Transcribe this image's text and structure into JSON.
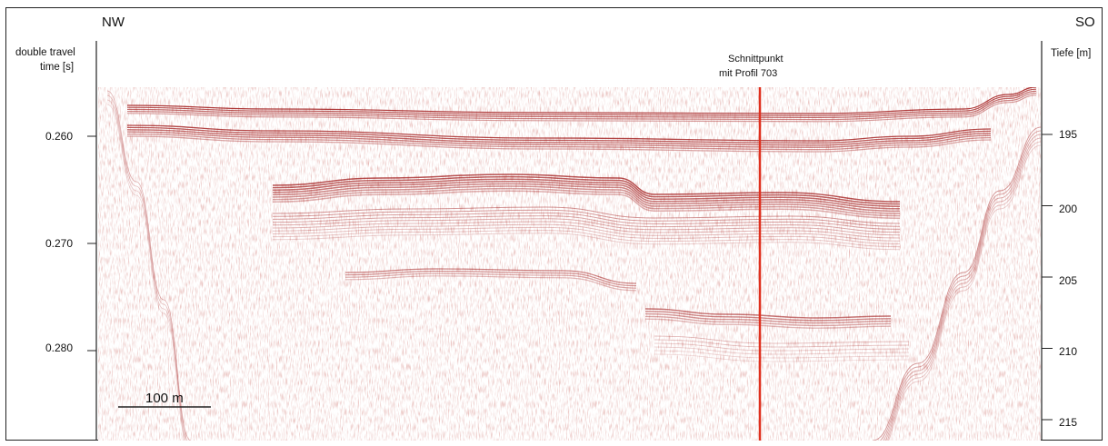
{
  "figure": {
    "direction_left": "NW",
    "direction_right": "SO",
    "left_axis_title_line1": "double travel",
    "left_axis_title_line2": "time [s]",
    "right_axis_title": "Tiefe [m]",
    "marker_label_line1": "Schnittpunkt",
    "marker_label_line2": "mit Profil 703",
    "scalebar_label": "100 m",
    "marker_color": "#e0301e",
    "reflector_color": "#a01818"
  },
  "chart_data": {
    "type": "seismic-profile",
    "left_axis": {
      "label": "double travel time [s]",
      "ticks": [
        "0.260",
        "0.270",
        "0.280"
      ],
      "values": [
        0.26,
        0.27,
        0.28
      ]
    },
    "right_axis": {
      "label": "Tiefe [m]",
      "ticks": [
        "195",
        "200",
        "205",
        "210",
        "215"
      ],
      "values": [
        195,
        200,
        205,
        210,
        215
      ]
    },
    "directions": [
      "NW",
      "SO"
    ],
    "annotation": "Schnittpunkt mit Profil 703",
    "scale_bar": "100 m"
  }
}
